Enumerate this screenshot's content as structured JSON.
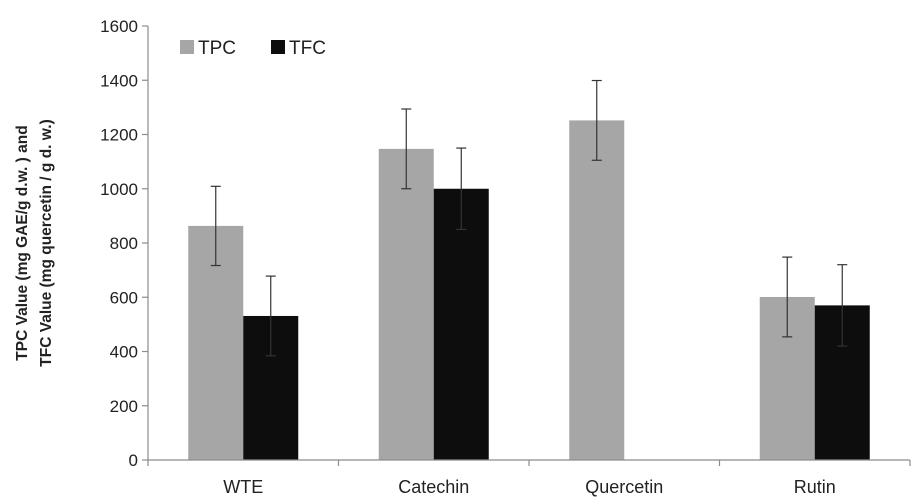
{
  "chart_data": {
    "type": "bar",
    "title": "",
    "xlabel": "",
    "ylabel_lines": [
      "TPC  Value (mg GAE/g d.w. ) and",
      "TFC Value (mg quercetin  / g d. w.)"
    ],
    "categories": [
      "WTE",
      "Catechin",
      "Quercetin",
      "Rutin"
    ],
    "ylim": [
      0,
      1600
    ],
    "yticks": [
      0,
      200,
      400,
      600,
      800,
      1000,
      1200,
      1400,
      1600
    ],
    "legend_position": "top-left",
    "grid": false,
    "series": [
      {
        "name": "TPC",
        "color": "#a6a6a6",
        "values": [
          863,
          1147,
          1252,
          601
        ],
        "error": [
          146,
          147,
          147,
          147
        ]
      },
      {
        "name": "TFC",
        "color": "#0d0d0d",
        "values": [
          531,
          1000,
          null,
          570
        ],
        "error": [
          147,
          150,
          null,
          150
        ]
      }
    ]
  }
}
